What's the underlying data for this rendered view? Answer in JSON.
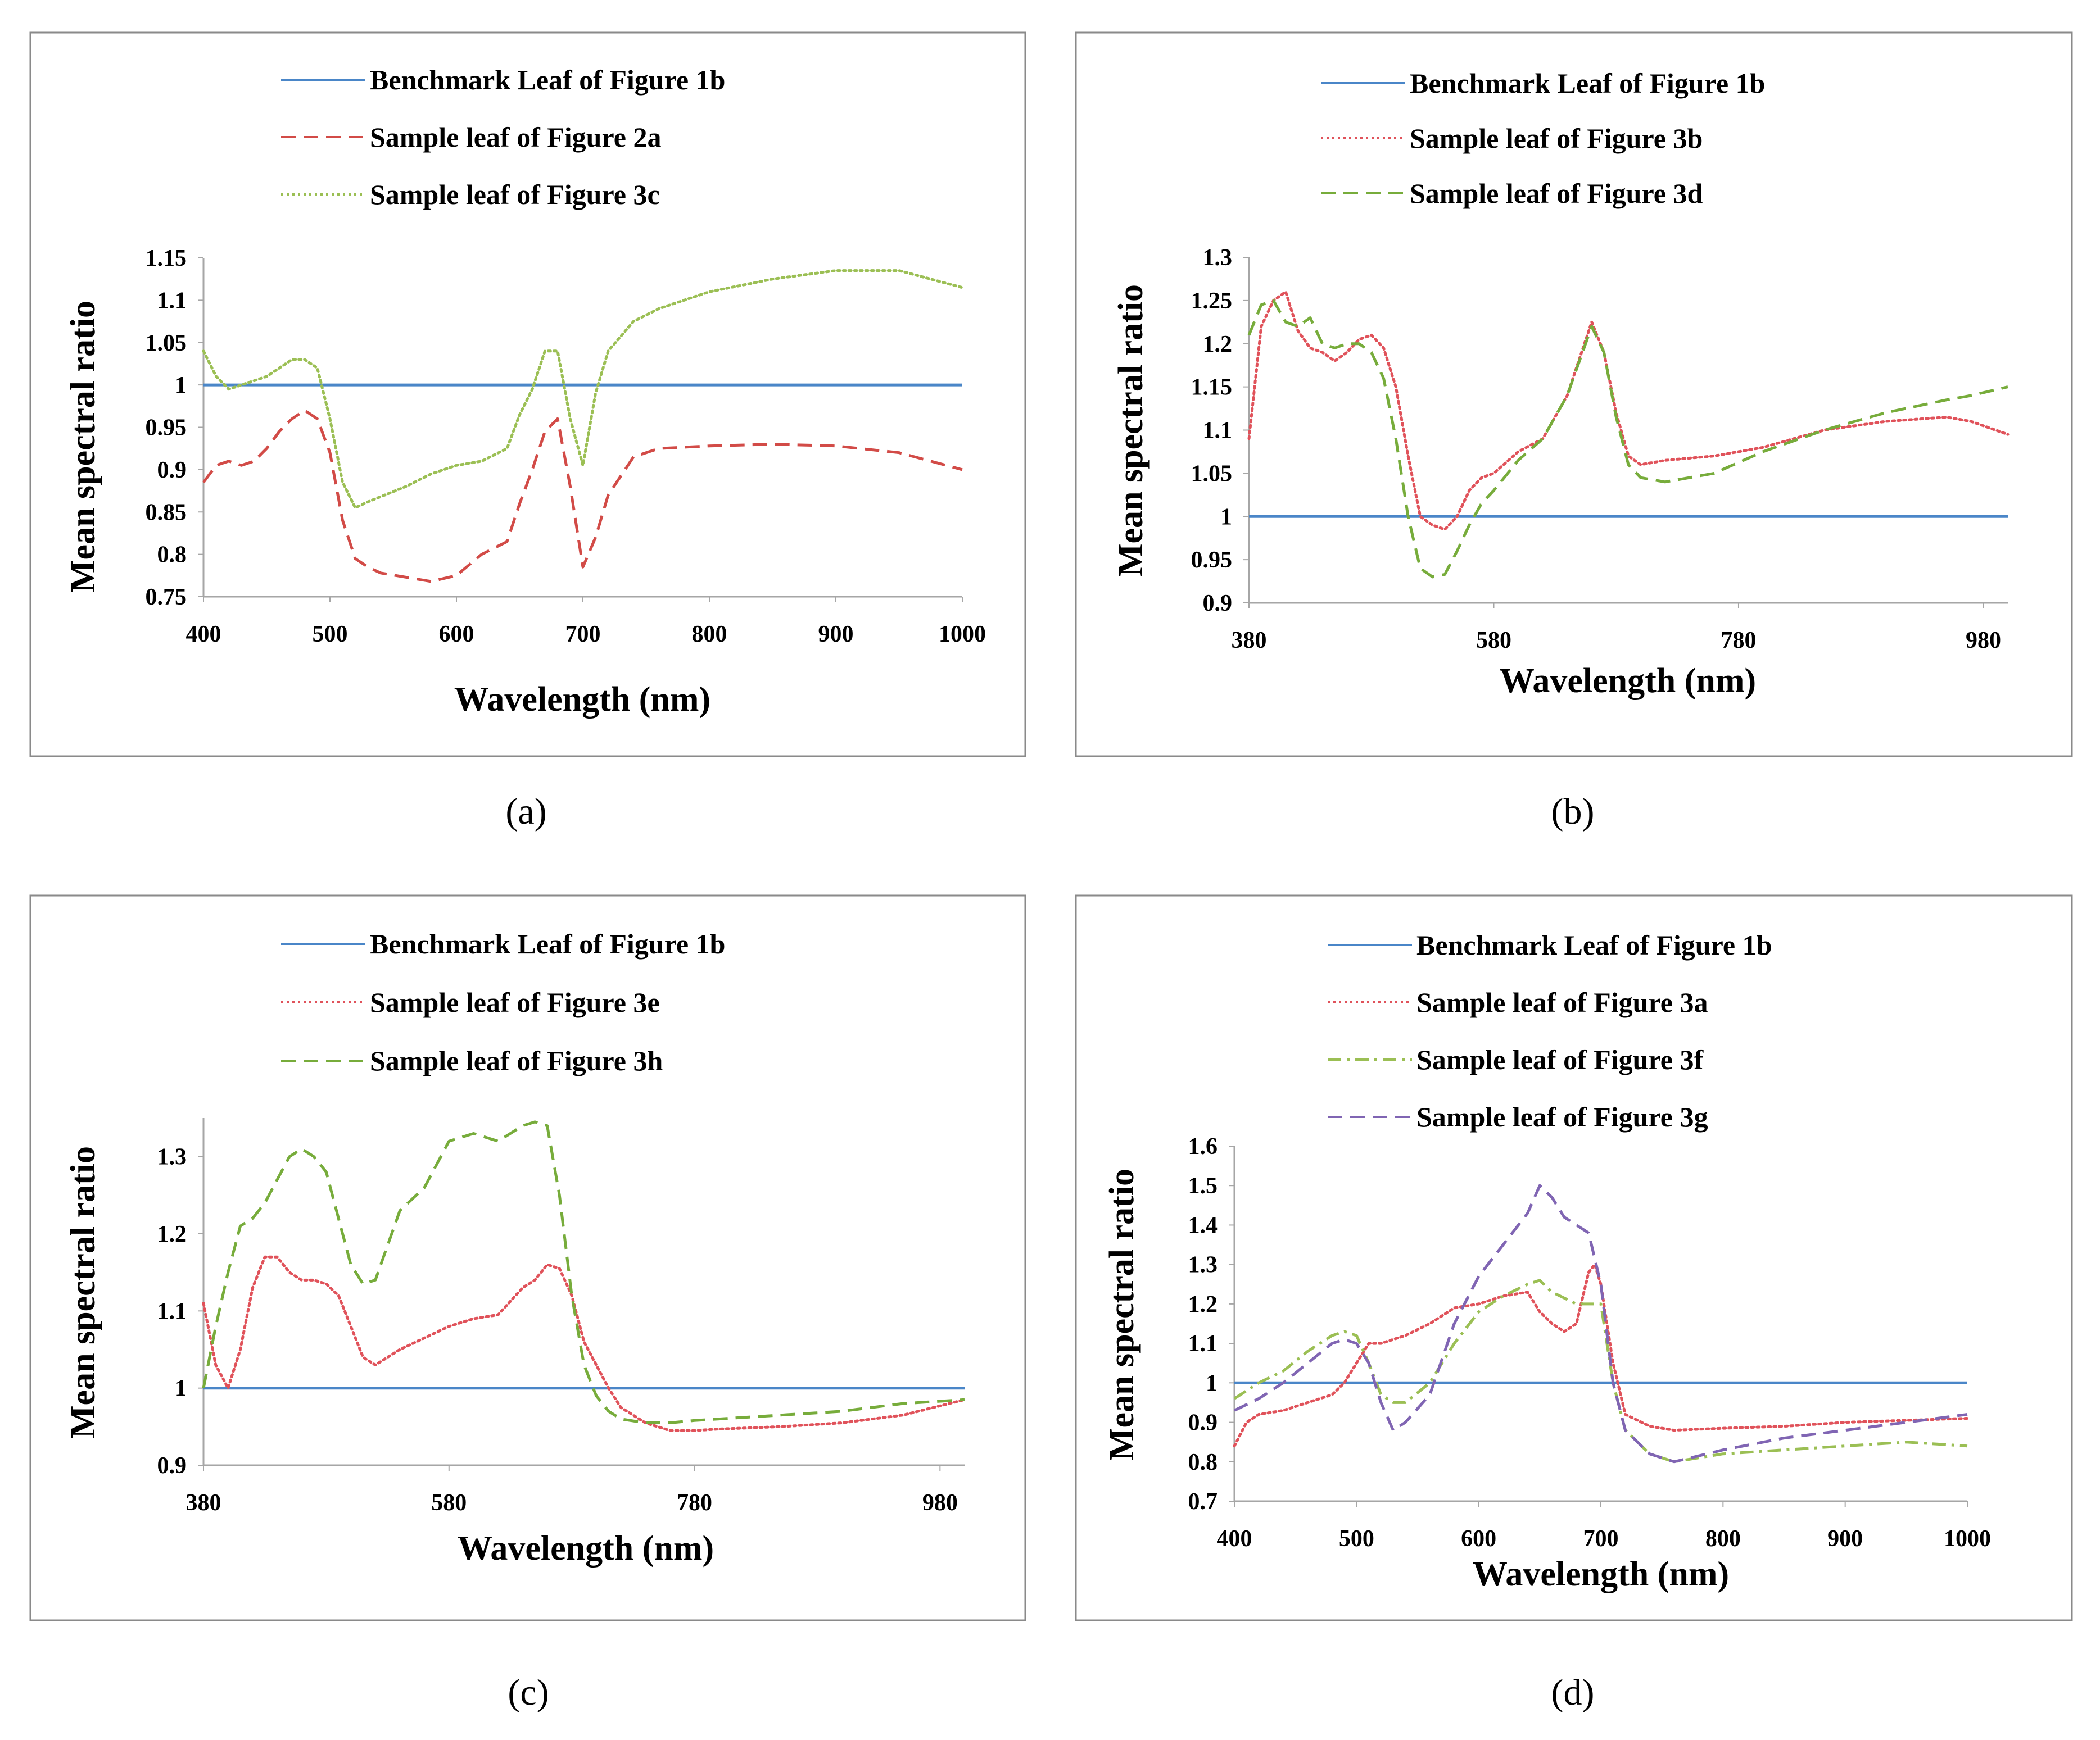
{
  "colors": {
    "benchmark": "#4a86c8",
    "red_dash": "#d24b47",
    "red_dot": "#e0525a",
    "green_dot": "#9bbf54",
    "green_dash": "#77ac3b",
    "purple_dash": "#8065b3",
    "frame": "#8a8a8a",
    "axis": "#a6a6a6"
  },
  "chart_data": [
    {
      "type": "line",
      "panel_label": "a",
      "caption": "(a)",
      "xlabel": "Wavelength (nm)",
      "ylabel": "Mean spectral ratio",
      "xlim": [
        400,
        1000
      ],
      "ylim": [
        0.75,
        1.15
      ],
      "xticks": [
        400,
        500,
        600,
        700,
        800,
        900,
        1000
      ],
      "xtick_labels": [
        "400",
        "500",
        "600",
        "700",
        "800",
        "900",
        "1000"
      ],
      "yticks": [
        0.75,
        0.8,
        0.85,
        0.9,
        0.95,
        1,
        1.05,
        1.1,
        1.15
      ],
      "ytick_labels": [
        "0.75",
        "0.8",
        "0.85",
        "0.9",
        "0.95",
        "1",
        "1.05",
        "1.1",
        "1.15"
      ],
      "grid": false,
      "legend": "top",
      "series": [
        {
          "name": "Benchmark Leaf of Figure 1b",
          "style": "solid",
          "color": "#4a86c8",
          "x": [
            400,
            1000
          ],
          "y": [
            1.0,
            1.0
          ]
        },
        {
          "name": "Sample leaf of Figure 2a",
          "style": "dashed",
          "color": "#d24b47",
          "x": [
            400,
            410,
            420,
            430,
            440,
            450,
            460,
            470,
            480,
            490,
            500,
            510,
            520,
            530,
            540,
            560,
            580,
            600,
            620,
            640,
            650,
            660,
            670,
            680,
            690,
            700,
            710,
            720,
            740,
            760,
            800,
            850,
            900,
            950,
            1000
          ],
          "y": [
            0.885,
            0.905,
            0.91,
            0.905,
            0.91,
            0.925,
            0.945,
            0.96,
            0.97,
            0.96,
            0.92,
            0.84,
            0.795,
            0.785,
            0.778,
            0.773,
            0.768,
            0.775,
            0.8,
            0.815,
            0.86,
            0.9,
            0.945,
            0.96,
            0.88,
            0.785,
            0.82,
            0.87,
            0.915,
            0.925,
            0.928,
            0.93,
            0.928,
            0.92,
            0.9
          ]
        },
        {
          "name": "Sample leaf of Figure 3c",
          "style": "dotted",
          "color": "#9bbf54",
          "x": [
            400,
            410,
            420,
            430,
            440,
            450,
            460,
            470,
            480,
            490,
            500,
            510,
            520,
            530,
            540,
            560,
            580,
            600,
            620,
            640,
            650,
            660,
            670,
            680,
            690,
            700,
            710,
            720,
            740,
            760,
            800,
            850,
            900,
            950,
            1000
          ],
          "y": [
            1.04,
            1.01,
            0.995,
            1.0,
            1.005,
            1.01,
            1.02,
            1.03,
            1.03,
            1.02,
            0.96,
            0.885,
            0.855,
            0.862,
            0.868,
            0.88,
            0.895,
            0.905,
            0.91,
            0.925,
            0.965,
            0.995,
            1.04,
            1.04,
            0.96,
            0.905,
            0.99,
            1.04,
            1.075,
            1.09,
            1.11,
            1.125,
            1.135,
            1.135,
            1.115
          ]
        }
      ]
    },
    {
      "type": "line",
      "panel_label": "b",
      "caption": "(b)",
      "xlabel": "Wavelength (nm)",
      "ylabel": "Mean spectral ratio",
      "xlim": [
        380,
        1000
      ],
      "ylim": [
        0.9,
        1.3
      ],
      "xticks": [
        380,
        580,
        780,
        980
      ],
      "xtick_labels": [
        "380",
        "580",
        "780",
        "980"
      ],
      "yticks": [
        0.9,
        0.95,
        1,
        1.05,
        1.1,
        1.15,
        1.2,
        1.25,
        1.3
      ],
      "ytick_labels": [
        "0.9",
        "0.95",
        "1",
        "1.05",
        "1.1",
        "1.15",
        "1.2",
        "1.25",
        "1.3"
      ],
      "grid": false,
      "legend": "top",
      "series": [
        {
          "name": "Benchmark Leaf of Figure 1b",
          "style": "solid",
          "color": "#4a86c8",
          "x": [
            380,
            1000
          ],
          "y": [
            1.0,
            1.0
          ]
        },
        {
          "name": "Sample leaf of Figure 3b",
          "style": "dotted",
          "color": "#e0525a",
          "x": [
            380,
            390,
            400,
            410,
            420,
            430,
            440,
            450,
            460,
            470,
            480,
            490,
            500,
            510,
            520,
            530,
            540,
            550,
            560,
            570,
            580,
            600,
            620,
            640,
            660,
            670,
            680,
            690,
            700,
            720,
            760,
            800,
            850,
            900,
            950,
            970,
            1000
          ],
          "y": [
            1.09,
            1.22,
            1.25,
            1.26,
            1.215,
            1.195,
            1.19,
            1.18,
            1.19,
            1.205,
            1.21,
            1.195,
            1.15,
            1.07,
            1.0,
            0.99,
            0.985,
            1.0,
            1.03,
            1.045,
            1.05,
            1.075,
            1.09,
            1.14,
            1.225,
            1.19,
            1.12,
            1.07,
            1.06,
            1.065,
            1.07,
            1.08,
            1.1,
            1.11,
            1.115,
            1.11,
            1.095
          ]
        },
        {
          "name": "Sample leaf of Figure 3d",
          "style": "dashed",
          "color": "#77ac3b",
          "x": [
            380,
            390,
            400,
            410,
            420,
            430,
            440,
            450,
            460,
            470,
            480,
            490,
            500,
            510,
            520,
            530,
            540,
            550,
            560,
            570,
            580,
            600,
            620,
            640,
            660,
            670,
            680,
            690,
            700,
            720,
            760,
            800,
            850,
            900,
            950,
            970,
            1000
          ],
          "y": [
            1.21,
            1.245,
            1.25,
            1.225,
            1.22,
            1.23,
            1.2,
            1.195,
            1.2,
            1.2,
            1.19,
            1.16,
            1.09,
            1.0,
            0.94,
            0.93,
            0.933,
            0.96,
            0.99,
            1.015,
            1.03,
            1.065,
            1.09,
            1.14,
            1.22,
            1.19,
            1.115,
            1.06,
            1.045,
            1.04,
            1.05,
            1.075,
            1.1,
            1.12,
            1.135,
            1.14,
            1.15
          ]
        }
      ]
    },
    {
      "type": "line",
      "panel_label": "c",
      "caption": "(c)",
      "xlabel": "Wavelength (nm)",
      "ylabel": "Mean spectral ratio",
      "xlim": [
        380,
        1000
      ],
      "ylim": [
        0.9,
        1.35
      ],
      "xticks": [
        380,
        580,
        780,
        980
      ],
      "xtick_labels": [
        "380",
        "580",
        "780",
        "980"
      ],
      "yticks": [
        0.9,
        1,
        1.1,
        1.2,
        1.3
      ],
      "ytick_labels": [
        "0.9",
        "1",
        "1.1",
        "1.2",
        "1.3"
      ],
      "grid": false,
      "legend": "top",
      "series": [
        {
          "name": "Benchmark Leaf of Figure 1b",
          "style": "solid",
          "color": "#4a86c8",
          "x": [
            380,
            1000
          ],
          "y": [
            1.0,
            1.0
          ]
        },
        {
          "name": "Sample leaf of Figure 3e",
          "style": "dotted",
          "color": "#e0525a",
          "x": [
            380,
            390,
            400,
            410,
            420,
            430,
            440,
            450,
            460,
            470,
            480,
            490,
            500,
            510,
            520,
            540,
            560,
            580,
            600,
            620,
            640,
            650,
            660,
            670,
            680,
            690,
            700,
            710,
            720,
            740,
            760,
            780,
            800,
            850,
            900,
            950,
            1000
          ],
          "y": [
            1.11,
            1.03,
            1.0,
            1.05,
            1.13,
            1.17,
            1.17,
            1.15,
            1.14,
            1.14,
            1.135,
            1.12,
            1.08,
            1.04,
            1.03,
            1.05,
            1.065,
            1.08,
            1.09,
            1.095,
            1.13,
            1.14,
            1.16,
            1.155,
            1.12,
            1.06,
            1.03,
            1.0,
            0.975,
            0.955,
            0.945,
            0.945,
            0.947,
            0.95,
            0.955,
            0.965,
            0.985
          ]
        },
        {
          "name": "Sample leaf of Figure 3h",
          "style": "dashed",
          "color": "#77ac3b",
          "x": [
            380,
            390,
            400,
            410,
            420,
            430,
            440,
            450,
            460,
            470,
            480,
            490,
            500,
            510,
            520,
            540,
            560,
            580,
            600,
            620,
            640,
            650,
            660,
            670,
            680,
            690,
            700,
            710,
            720,
            740,
            760,
            780,
            800,
            850,
            900,
            950,
            1000
          ],
          "y": [
            1.0,
            1.08,
            1.15,
            1.21,
            1.22,
            1.24,
            1.27,
            1.3,
            1.31,
            1.3,
            1.28,
            1.22,
            1.16,
            1.135,
            1.14,
            1.23,
            1.26,
            1.32,
            1.33,
            1.32,
            1.34,
            1.345,
            1.34,
            1.25,
            1.12,
            1.03,
            0.99,
            0.97,
            0.96,
            0.955,
            0.955,
            0.958,
            0.96,
            0.965,
            0.97,
            0.98,
            0.985
          ]
        }
      ]
    },
    {
      "type": "line",
      "panel_label": "d",
      "caption": "(d)",
      "xlabel": "Wavelength (nm)",
      "ylabel": "Mean spectral ratio",
      "xlim": [
        400,
        1000
      ],
      "ylim": [
        0.7,
        1.6
      ],
      "xticks": [
        400,
        500,
        600,
        700,
        800,
        900,
        1000
      ],
      "xtick_labels": [
        "400",
        "500",
        "600",
        "700",
        "800",
        "900",
        "1000"
      ],
      "yticks": [
        0.7,
        0.8,
        0.9,
        1,
        1.1,
        1.2,
        1.3,
        1.4,
        1.5,
        1.6
      ],
      "ytick_labels": [
        "0.7",
        "0.8",
        "0.9",
        "1",
        "1.1",
        "1.2",
        "1.3",
        "1.4",
        "1.5",
        "1.6"
      ],
      "grid": false,
      "legend": "top",
      "series": [
        {
          "name": "Benchmark Leaf of Figure 1b",
          "style": "solid",
          "color": "#4a86c8",
          "x": [
            400,
            1000
          ],
          "y": [
            1.0,
            1.0
          ]
        },
        {
          "name": "Sample leaf of Figure 3a",
          "style": "dotted",
          "color": "#e0525a",
          "x": [
            400,
            410,
            420,
            440,
            460,
            480,
            490,
            500,
            510,
            520,
            530,
            540,
            560,
            580,
            600,
            620,
            640,
            650,
            660,
            670,
            680,
            690,
            695,
            700,
            710,
            720,
            740,
            760,
            800,
            850,
            900,
            950,
            1000
          ],
          "y": [
            0.84,
            0.9,
            0.92,
            0.93,
            0.95,
            0.97,
            1.0,
            1.05,
            1.1,
            1.1,
            1.11,
            1.12,
            1.15,
            1.19,
            1.2,
            1.22,
            1.23,
            1.18,
            1.15,
            1.13,
            1.15,
            1.28,
            1.3,
            1.25,
            1.05,
            0.92,
            0.89,
            0.88,
            0.885,
            0.89,
            0.9,
            0.905,
            0.91
          ]
        },
        {
          "name": "Sample leaf of Figure 3f",
          "style": "dashdot",
          "color": "#9bbf54",
          "x": [
            400,
            420,
            440,
            460,
            480,
            490,
            500,
            510,
            520,
            530,
            540,
            560,
            580,
            600,
            620,
            640,
            650,
            660,
            680,
            700,
            710,
            720,
            740,
            760,
            800,
            850,
            900,
            950,
            1000
          ],
          "y": [
            0.96,
            1.0,
            1.03,
            1.08,
            1.12,
            1.13,
            1.12,
            1.05,
            0.97,
            0.95,
            0.95,
            1.0,
            1.1,
            1.18,
            1.22,
            1.25,
            1.26,
            1.23,
            1.2,
            1.2,
            1.0,
            0.88,
            0.82,
            0.8,
            0.82,
            0.83,
            0.84,
            0.85,
            0.84
          ]
        },
        {
          "name": "Sample leaf of Figure 3g",
          "style": "dashed",
          "color": "#8065b3",
          "x": [
            400,
            420,
            440,
            460,
            480,
            490,
            500,
            510,
            520,
            530,
            540,
            560,
            580,
            600,
            620,
            640,
            650,
            660,
            670,
            680,
            690,
            700,
            710,
            720,
            740,
            760,
            800,
            850,
            900,
            950,
            1000
          ],
          "y": [
            0.93,
            0.96,
            1.0,
            1.05,
            1.1,
            1.11,
            1.1,
            1.05,
            0.95,
            0.88,
            0.9,
            0.97,
            1.15,
            1.27,
            1.35,
            1.43,
            1.5,
            1.47,
            1.42,
            1.4,
            1.38,
            1.25,
            1.0,
            0.88,
            0.82,
            0.8,
            0.83,
            0.86,
            0.88,
            0.9,
            0.92
          ]
        }
      ]
    }
  ]
}
